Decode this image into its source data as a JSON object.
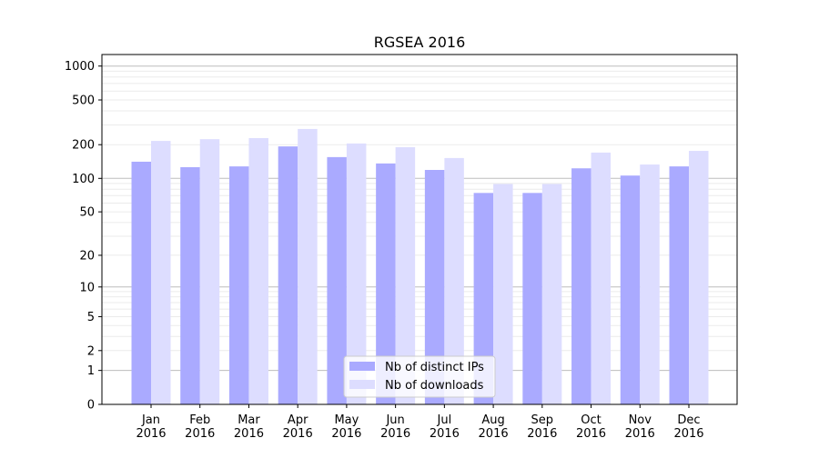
{
  "chart_data": {
    "type": "bar",
    "title": "RGSEA 2016",
    "xlabel": "",
    "ylabel": "",
    "yscale": "log10(y+1)",
    "ylim": [
      0,
      1300
    ],
    "yticks": [
      0,
      1,
      2,
      5,
      10,
      20,
      50,
      100,
      200,
      500,
      1000
    ],
    "grid": true,
    "legend_position": "bottom-center",
    "categories": [
      "Jan\n2016",
      "Feb\n2016",
      "Mar\n2016",
      "Apr\n2016",
      "May\n2016",
      "Jun\n2016",
      "Jul\n2016",
      "Aug\n2016",
      "Sep\n2016",
      "Oct\n2016",
      "Nov\n2016",
      "Dec\n2016"
    ],
    "series": [
      {
        "name": "Nb of distinct IPs",
        "color": "#aaaaff",
        "values": [
          141,
          126,
          128,
          193,
          155,
          136,
          119,
          74,
          74,
          123,
          106,
          128
        ]
      },
      {
        "name": "Nb of downloads",
        "color": "#ddddff",
        "values": [
          216,
          224,
          229,
          276,
          205,
          190,
          152,
          89,
          89,
          170,
          133,
          176
        ]
      }
    ]
  }
}
